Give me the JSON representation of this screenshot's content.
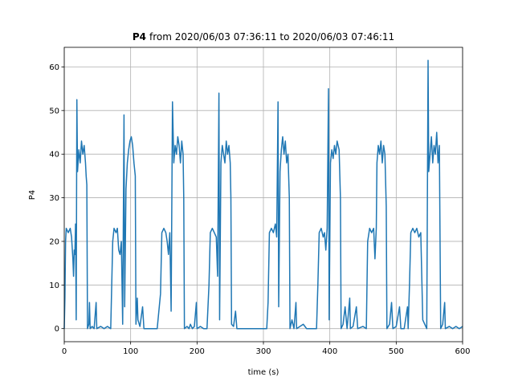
{
  "chart_data": {
    "type": "line",
    "title_parts": [
      "P4",
      "from 2020/06/03 07:36:11 to 2020/06/03 07:46:11"
    ],
    "xlabel": "time (s)",
    "ylabel": "P4",
    "color": "#1f77b4",
    "grid": true,
    "xlim": [
      0,
      600
    ],
    "xticks": [
      0,
      100,
      200,
      300,
      400,
      500,
      600
    ],
    "ylim": [
      -3,
      64.5
    ],
    "yticks": [
      0,
      10,
      20,
      30,
      40,
      50,
      60
    ],
    "x": [
      0,
      1,
      2,
      3,
      6,
      9,
      11,
      13,
      14,
      15,
      16,
      17,
      18,
      19,
      20,
      22,
      24,
      26,
      28,
      30,
      32,
      33,
      34,
      35,
      37,
      38,
      39,
      42,
      45,
      48,
      49,
      55,
      60,
      65,
      70,
      73,
      75,
      78,
      80,
      82,
      84,
      86,
      88,
      90,
      91,
      93,
      95,
      97,
      99,
      101,
      103,
      105,
      107,
      108,
      110,
      111,
      114,
      118,
      120,
      130,
      140,
      145,
      147,
      150,
      153,
      155,
      157,
      159,
      161,
      163,
      165,
      167,
      169,
      171,
      173,
      175,
      177,
      179,
      180,
      181,
      185,
      188,
      190,
      193,
      196,
      199,
      200,
      205,
      210,
      215,
      218,
      220,
      223,
      226,
      229,
      231,
      233,
      234,
      236,
      238,
      240,
      242,
      244,
      246,
      248,
      250,
      251,
      252,
      255,
      258,
      260,
      265,
      280,
      295,
      305,
      307,
      309,
      312,
      315,
      318,
      320,
      322,
      323,
      325,
      327,
      329,
      331,
      333,
      335,
      337,
      339,
      340,
      343,
      346,
      349,
      350,
      355,
      360,
      365,
      370,
      375,
      380,
      382,
      384,
      387,
      390,
      392,
      394,
      396,
      398,
      399,
      401,
      403,
      405,
      407,
      409,
      411,
      414,
      416,
      417,
      420,
      423,
      426,
      430,
      431,
      435,
      440,
      442,
      450,
      455,
      457,
      460,
      463,
      466,
      468,
      470,
      471,
      473,
      475,
      477,
      479,
      481,
      483,
      485,
      486,
      490,
      493,
      495,
      500,
      505,
      507,
      512,
      517,
      518,
      520,
      522,
      525,
      528,
      531,
      534,
      537,
      540,
      546,
      548,
      549,
      551,
      553,
      555,
      557,
      559,
      561,
      563,
      565,
      567,
      570,
      573,
      574,
      580,
      585,
      590,
      595,
      600
    ],
    "values": [
      0,
      7,
      20,
      23,
      22,
      23,
      21,
      16,
      12,
      18,
      17,
      24,
      2,
      52.5,
      36,
      41,
      38,
      43,
      40,
      42,
      38,
      35,
      33,
      0,
      1,
      6,
      0,
      0.5,
      0,
      6,
      0,
      0.5,
      0,
      0.5,
      0,
      20,
      23,
      22,
      23,
      18,
      17,
      20,
      1,
      49,
      5,
      32,
      38,
      41,
      43,
      44,
      42,
      38,
      35,
      1,
      7,
      2,
      0.5,
      5,
      0,
      0,
      0,
      8,
      22,
      23,
      22,
      20,
      17,
      22,
      4,
      52,
      38,
      42,
      40,
      44,
      42,
      38,
      43,
      40,
      30,
      0,
      0.5,
      0,
      1,
      0,
      0.5,
      6,
      0,
      0.5,
      0,
      0,
      10,
      22,
      23,
      22,
      21,
      12,
      54,
      2,
      38,
      42,
      40,
      38,
      43,
      40,
      42,
      38,
      30,
      1,
      0.5,
      4,
      0,
      0,
      0,
      0,
      0,
      6,
      22,
      23,
      22,
      24,
      21,
      52,
      5,
      36,
      41,
      44,
      40,
      43,
      38,
      40,
      30,
      0,
      2,
      0,
      6,
      0,
      0.5,
      1,
      0,
      0,
      0,
      0,
      10,
      22,
      23,
      21,
      22,
      18,
      23,
      55,
      2,
      38,
      41,
      39,
      42,
      40,
      43,
      41,
      30,
      0,
      1,
      5,
      0,
      7,
      0,
      0.5,
      5,
      0,
      0.5,
      0,
      20,
      23,
      22,
      23,
      16,
      23,
      38,
      42,
      40,
      43,
      38,
      42,
      40,
      28,
      0,
      1,
      6,
      0,
      0.5,
      5,
      0,
      0,
      5,
      0,
      10,
      22,
      23,
      22,
      23,
      21,
      22,
      2,
      0,
      61.5,
      36,
      40,
      44,
      38,
      42,
      40,
      45,
      38,
      42,
      0,
      1,
      6,
      0,
      0.5,
      0,
      0.5,
      0,
      0.5
    ]
  }
}
